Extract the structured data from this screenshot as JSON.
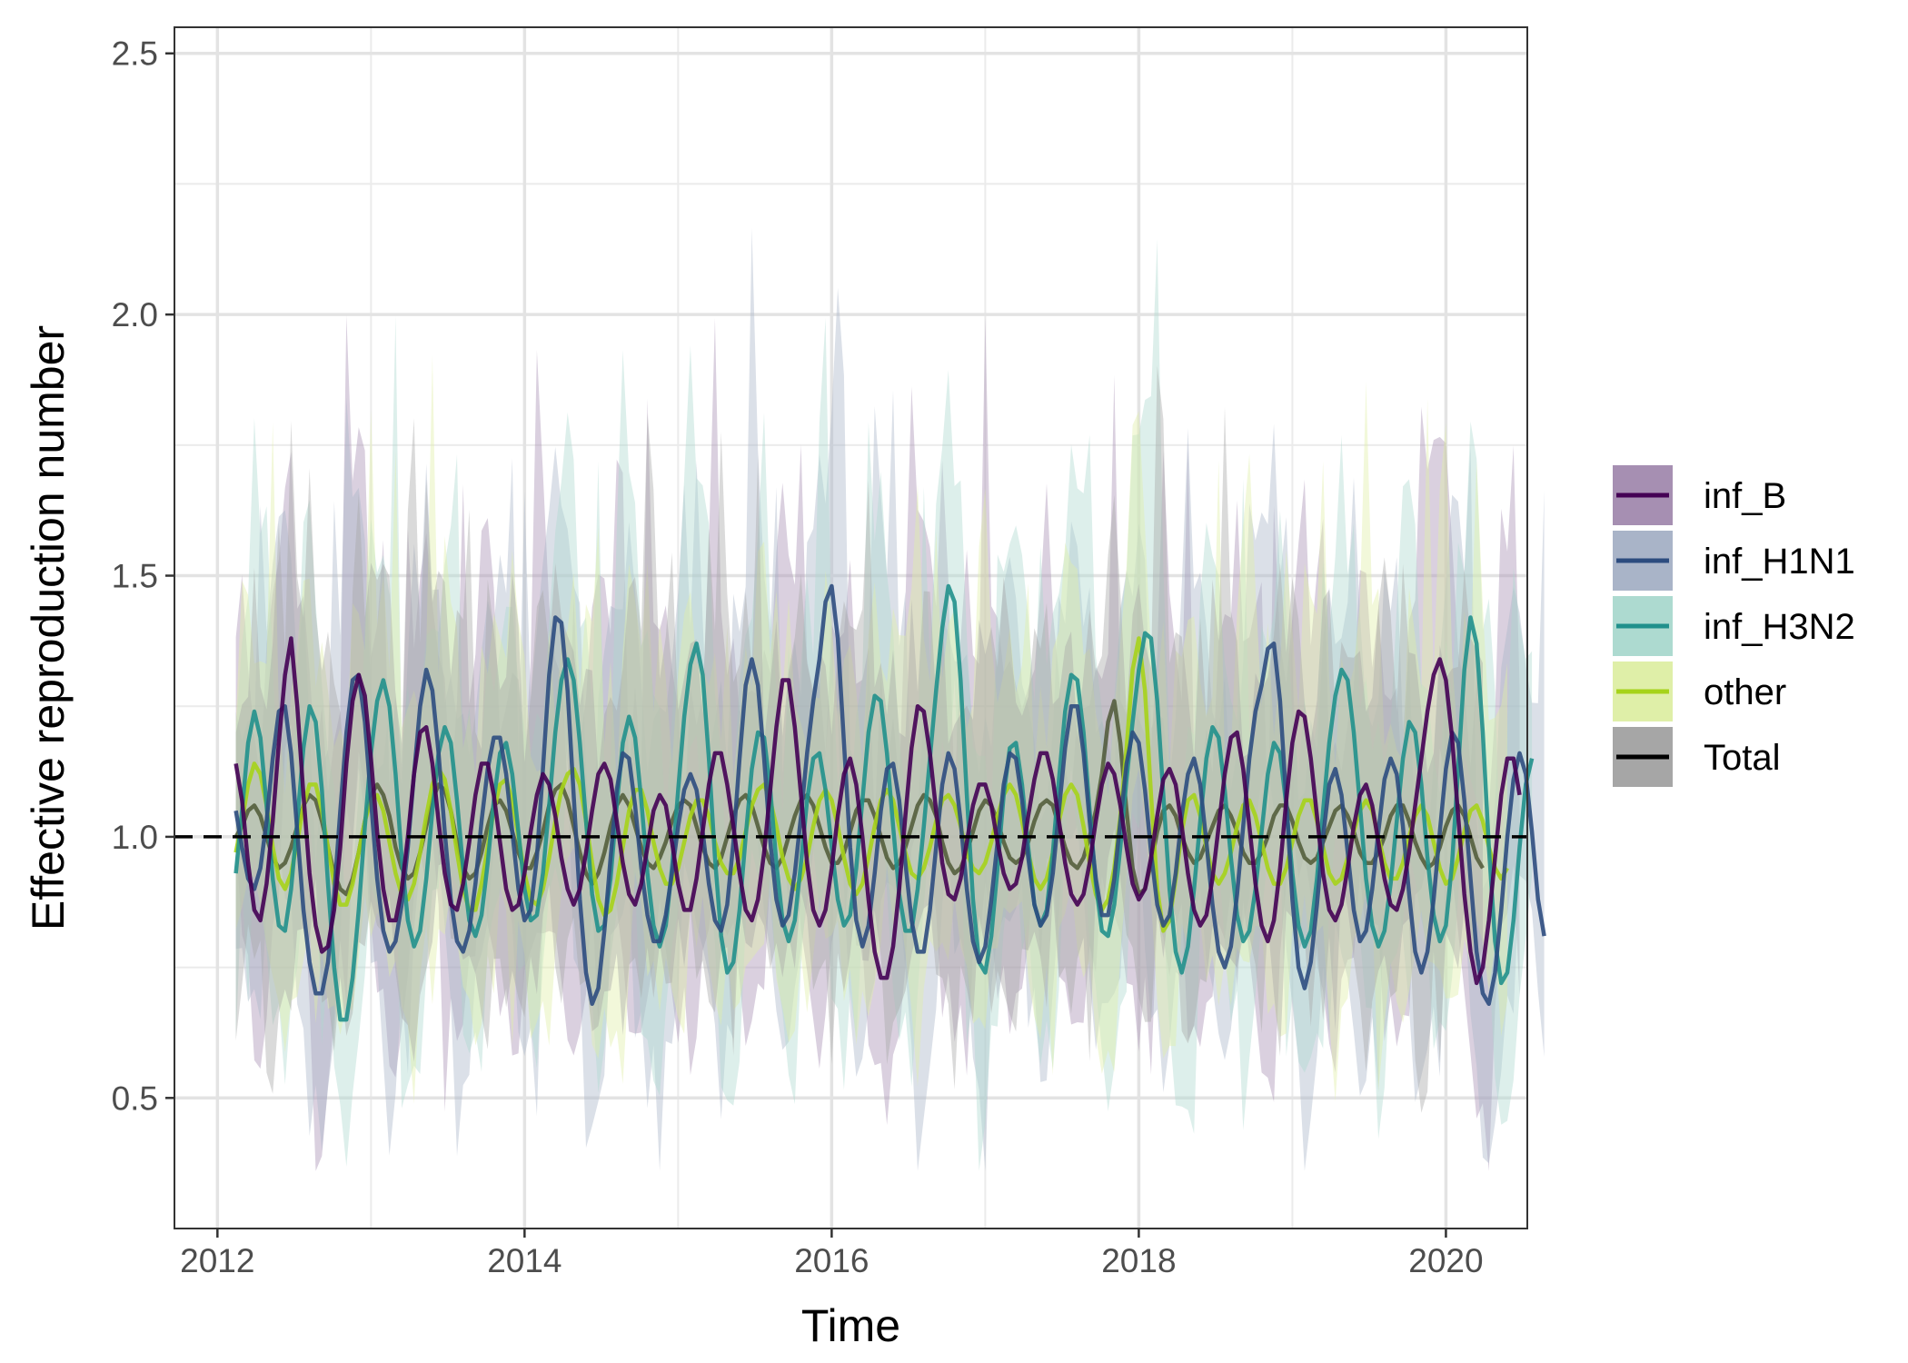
{
  "chart_data": {
    "type": "line",
    "title": "",
    "xlabel": "Time",
    "ylabel": "Effective reproduction number",
    "xlim": [
      2011.72,
      2020.53
    ],
    "ylim": [
      0.25,
      2.55
    ],
    "x_ticks": [
      2012,
      2014,
      2016,
      2018,
      2020
    ],
    "x_tick_labels": [
      "2012",
      "2014",
      "2016",
      "2018",
      "2020"
    ],
    "y_ticks": [
      0.5,
      1.0,
      1.5,
      2.0,
      2.5
    ],
    "y_tick_labels": [
      "0.5",
      "1.0",
      "1.5",
      "2.0",
      "2.5"
    ],
    "grid": true,
    "legend_position": "right",
    "reference_line": {
      "y": 1.0,
      "style": "dashed",
      "color": "#000000"
    },
    "x_start": 2012.12,
    "x_step": 0.04,
    "series": [
      {
        "name": "inf_B",
        "color": "#440154",
        "fill": "#A68FB2",
        "values": [
          1.14,
          1.07,
          0.95,
          0.86,
          0.84,
          0.91,
          1.03,
          1.18,
          1.31,
          1.38,
          1.25,
          1.08,
          0.93,
          0.83,
          0.78,
          0.79,
          0.86,
          0.98,
          1.14,
          1.26,
          1.31,
          1.27,
          1.15,
          1.01,
          0.9,
          0.84,
          0.84,
          0.9,
          1.0,
          1.12,
          1.2,
          1.21,
          1.14,
          1.03,
          0.93,
          0.87,
          0.86,
          0.91,
          0.99,
          1.08,
          1.14,
          1.14,
          1.08,
          0.99,
          0.9,
          0.86,
          0.87,
          0.93,
          1.01,
          1.08,
          1.12,
          1.1,
          1.04,
          0.96,
          0.9,
          0.87,
          0.9,
          0.97,
          1.05,
          1.12,
          1.14,
          1.11,
          1.03,
          0.95,
          0.89,
          0.87,
          0.91,
          0.98,
          1.05,
          1.08,
          1.06,
          0.99,
          0.91,
          0.86,
          0.86,
          0.92,
          1.01,
          1.1,
          1.16,
          1.16,
          1.1,
          1.02,
          0.93,
          0.86,
          0.84,
          0.88,
          0.97,
          1.09,
          1.21,
          1.3,
          1.3,
          1.21,
          1.08,
          0.95,
          0.86,
          0.83,
          0.86,
          0.94,
          1.04,
          1.12,
          1.15,
          1.1,
          1.0,
          0.88,
          0.78,
          0.73,
          0.73,
          0.79,
          0.9,
          1.04,
          1.17,
          1.25,
          1.24,
          1.16,
          1.05,
          0.95,
          0.89,
          0.88,
          0.92,
          0.99,
          1.06,
          1.1,
          1.1,
          1.06,
          0.99,
          0.93,
          0.9,
          0.91,
          0.96,
          1.04,
          1.11,
          1.16,
          1.16,
          1.11,
          1.03,
          0.95,
          0.89,
          0.87,
          0.89,
          0.95,
          1.03,
          1.1,
          1.14,
          1.12,
          1.06,
          0.98,
          0.91,
          0.88,
          0.9,
          0.96,
          1.04,
          1.11,
          1.13,
          1.1,
          1.02,
          0.93,
          0.86,
          0.83,
          0.85,
          0.92,
          1.02,
          1.12,
          1.19,
          1.2,
          1.13,
          1.02,
          0.91,
          0.83,
          0.8,
          0.84,
          0.94,
          1.07,
          1.18,
          1.24,
          1.23,
          1.15,
          1.04,
          0.93,
          0.86,
          0.84,
          0.87,
          0.94,
          1.02,
          1.08,
          1.1,
          1.06,
          0.99,
          0.92,
          0.87,
          0.86,
          0.9,
          0.97,
          1.06,
          1.15,
          1.24,
          1.31,
          1.34,
          1.3,
          1.19,
          1.04,
          0.89,
          0.78,
          0.72,
          0.75,
          0.84,
          0.96,
          1.08,
          1.15,
          1.15,
          1.08
        ]
      },
      {
        "name": "inf_H1N1",
        "color": "#2D4C7F",
        "fill": "#A9B4C8",
        "values": [
          1.05,
          0.98,
          0.92,
          0.9,
          0.94,
          1.03,
          1.15,
          1.24,
          1.25,
          1.16,
          1.01,
          0.86,
          0.76,
          0.7,
          0.7,
          0.76,
          0.89,
          1.05,
          1.2,
          1.3,
          1.31,
          1.22,
          1.07,
          0.92,
          0.82,
          0.78,
          0.8,
          0.87,
          0.98,
          1.12,
          1.25,
          1.32,
          1.28,
          1.16,
          1.01,
          0.88,
          0.8,
          0.78,
          0.82,
          0.91,
          1.03,
          1.13,
          1.19,
          1.19,
          1.12,
          1.01,
          0.9,
          0.84,
          0.86,
          0.96,
          1.13,
          1.31,
          1.42,
          1.41,
          1.28,
          1.08,
          0.88,
          0.74,
          0.68,
          0.71,
          0.82,
          0.96,
          1.09,
          1.16,
          1.15,
          1.06,
          0.94,
          0.85,
          0.8,
          0.8,
          0.85,
          0.93,
          1.02,
          1.09,
          1.12,
          1.09,
          1.01,
          0.91,
          0.84,
          0.82,
          0.87,
          0.99,
          1.15,
          1.29,
          1.34,
          1.29,
          1.15,
          0.99,
          0.88,
          0.83,
          0.85,
          0.93,
          1.04,
          1.16,
          1.26,
          1.34,
          1.45,
          1.48,
          1.38,
          1.18,
          0.98,
          0.84,
          0.79,
          0.83,
          0.93,
          1.05,
          1.13,
          1.14,
          1.07,
          0.95,
          0.84,
          0.78,
          0.78,
          0.86,
          0.98,
          1.1,
          1.16,
          1.13,
          1.03,
          0.9,
          0.8,
          0.76,
          0.79,
          0.88,
          0.99,
          1.1,
          1.16,
          1.15,
          1.07,
          0.96,
          0.87,
          0.83,
          0.85,
          0.93,
          1.05,
          1.17,
          1.25,
          1.25,
          1.16,
          1.03,
          0.92,
          0.85,
          0.85,
          0.92,
          1.03,
          1.14,
          1.2,
          1.18,
          1.09,
          0.97,
          0.87,
          0.83,
          0.85,
          0.93,
          1.04,
          1.12,
          1.15,
          1.1,
          0.99,
          0.87,
          0.78,
          0.75,
          0.79,
          0.89,
          1.02,
          1.15,
          1.24,
          1.29,
          1.36,
          1.37,
          1.26,
          1.07,
          0.88,
          0.75,
          0.71,
          0.76,
          0.87,
          1.0,
          1.1,
          1.13,
          1.08,
          0.97,
          0.86,
          0.8,
          0.82,
          0.9,
          1.01,
          1.11,
          1.15,
          1.12,
          1.02,
          0.89,
          0.78,
          0.74,
          0.78,
          0.88,
          1.01,
          1.13,
          1.2,
          1.18,
          1.07,
          0.92,
          0.78,
          0.7,
          0.68,
          0.74,
          0.86,
          1.0,
          1.11,
          1.16,
          1.12,
          1.01,
          0.88,
          0.81
        ]
      },
      {
        "name": "inf_H3N2",
        "color": "#21908C",
        "fill": "#ADDAD0",
        "values": [
          0.93,
          1.05,
          1.18,
          1.24,
          1.19,
          1.06,
          0.92,
          0.83,
          0.82,
          0.9,
          1.03,
          1.17,
          1.25,
          1.22,
          1.09,
          0.91,
          0.75,
          0.65,
          0.65,
          0.73,
          0.86,
          1.02,
          1.16,
          1.26,
          1.3,
          1.25,
          1.12,
          0.96,
          0.84,
          0.79,
          0.82,
          0.92,
          1.05,
          1.16,
          1.21,
          1.18,
          1.07,
          0.94,
          0.84,
          0.81,
          0.85,
          0.95,
          1.07,
          1.16,
          1.18,
          1.12,
          1.01,
          0.9,
          0.84,
          0.85,
          0.93,
          1.06,
          1.2,
          1.3,
          1.34,
          1.3,
          1.18,
          1.03,
          0.89,
          0.82,
          0.83,
          0.92,
          1.06,
          1.18,
          1.23,
          1.19,
          1.07,
          0.93,
          0.83,
          0.79,
          0.83,
          0.94,
          1.09,
          1.23,
          1.33,
          1.37,
          1.31,
          1.15,
          0.96,
          0.81,
          0.74,
          0.76,
          0.86,
          1.0,
          1.13,
          1.2,
          1.19,
          1.09,
          0.95,
          0.84,
          0.8,
          0.84,
          0.95,
          1.07,
          1.15,
          1.16,
          1.09,
          0.98,
          0.88,
          0.83,
          0.85,
          0.94,
          1.07,
          1.2,
          1.27,
          1.26,
          1.16,
          1.02,
          0.89,
          0.82,
          0.82,
          0.9,
          1.02,
          1.15,
          1.28,
          1.4,
          1.48,
          1.45,
          1.3,
          1.08,
          0.88,
          0.76,
          0.74,
          0.81,
          0.94,
          1.08,
          1.17,
          1.18,
          1.1,
          0.98,
          0.87,
          0.83,
          0.86,
          0.97,
          1.11,
          1.24,
          1.31,
          1.3,
          1.2,
          1.05,
          0.91,
          0.82,
          0.81,
          0.87,
          0.98,
          1.11,
          1.22,
          1.32,
          1.39,
          1.38,
          1.26,
          1.08,
          0.9,
          0.78,
          0.74,
          0.79,
          0.9,
          1.03,
          1.15,
          1.21,
          1.19,
          1.09,
          0.96,
          0.85,
          0.8,
          0.82,
          0.9,
          1.01,
          1.12,
          1.18,
          1.16,
          1.06,
          0.93,
          0.83,
          0.79,
          0.82,
          0.92,
          1.05,
          1.18,
          1.27,
          1.32,
          1.3,
          1.2,
          1.06,
          0.92,
          0.83,
          0.79,
          0.82,
          0.91,
          1.03,
          1.15,
          1.22,
          1.2,
          1.1,
          0.96,
          0.85,
          0.8,
          0.83,
          0.95,
          1.13,
          1.32,
          1.42,
          1.37,
          1.2,
          0.98,
          0.8,
          0.72,
          0.74,
          0.84,
          0.98,
          1.1,
          1.15
        ]
      },
      {
        "name": "other",
        "color": "#A6D31A",
        "fill": "#DFEFA8",
        "values": [
          0.97,
          1.03,
          1.1,
          1.14,
          1.12,
          1.06,
          0.98,
          0.92,
          0.9,
          0.93,
          0.99,
          1.06,
          1.1,
          1.1,
          1.05,
          0.98,
          0.91,
          0.87,
          0.87,
          0.91,
          0.97,
          1.03,
          1.07,
          1.08,
          1.05,
          0.99,
          0.93,
          0.89,
          0.88,
          0.91,
          0.97,
          1.04,
          1.1,
          1.13,
          1.11,
          1.05,
          0.97,
          0.9,
          0.86,
          0.86,
          0.91,
          0.98,
          1.05,
          1.1,
          1.11,
          1.07,
          1.0,
          0.93,
          0.88,
          0.87,
          0.9,
          0.96,
          1.03,
          1.09,
          1.12,
          1.13,
          1.1,
          1.03,
          0.95,
          0.88,
          0.85,
          0.86,
          0.91,
          0.98,
          1.05,
          1.09,
          1.09,
          1.05,
          0.99,
          0.94,
          0.91,
          0.91,
          0.94,
          0.99,
          1.04,
          1.07,
          1.07,
          1.04,
          0.99,
          0.95,
          0.93,
          0.93,
          0.96,
          1.01,
          1.06,
          1.09,
          1.1,
          1.07,
          1.02,
          0.96,
          0.92,
          0.9,
          0.92,
          0.96,
          1.02,
          1.07,
          1.09,
          1.07,
          1.02,
          0.96,
          0.91,
          0.89,
          0.91,
          0.96,
          1.02,
          1.07,
          1.09,
          1.07,
          1.02,
          0.97,
          0.93,
          0.92,
          0.94,
          0.98,
          1.03,
          1.07,
          1.08,
          1.06,
          1.02,
          0.97,
          0.94,
          0.93,
          0.95,
          0.99,
          1.04,
          1.08,
          1.1,
          1.08,
          1.03,
          0.97,
          0.92,
          0.9,
          0.92,
          0.97,
          1.03,
          1.08,
          1.1,
          1.08,
          1.02,
          0.95,
          0.89,
          0.86,
          0.88,
          0.94,
          1.04,
          1.17,
          1.32,
          1.38,
          1.28,
          1.08,
          0.9,
          0.82,
          0.84,
          0.92,
          1.01,
          1.07,
          1.08,
          1.04,
          0.98,
          0.93,
          0.91,
          0.93,
          0.97,
          1.02,
          1.06,
          1.07,
          1.04,
          0.99,
          0.94,
          0.91,
          0.91,
          0.94,
          0.99,
          1.04,
          1.07,
          1.07,
          1.03,
          0.98,
          0.93,
          0.91,
          0.92,
          0.96,
          1.01,
          1.05,
          1.07,
          1.05,
          1.0,
          0.95,
          0.92,
          0.92,
          0.95,
          1.0,
          1.04,
          1.06,
          1.04,
          0.99,
          0.94,
          0.91,
          0.92,
          0.96,
          1.01,
          1.05,
          1.06,
          1.03,
          0.98,
          0.94,
          0.92,
          0.94
        ]
      },
      {
        "name": "Total",
        "color": "#000000",
        "fill": "#A6A6A6",
        "values": [
          1.0,
          1.02,
          1.05,
          1.06,
          1.04,
          1.0,
          0.96,
          0.94,
          0.95,
          0.98,
          1.02,
          1.06,
          1.08,
          1.07,
          1.03,
          0.98,
          0.93,
          0.9,
          0.89,
          0.92,
          0.97,
          1.03,
          1.08,
          1.1,
          1.08,
          1.04,
          0.98,
          0.94,
          0.92,
          0.93,
          0.97,
          1.02,
          1.07,
          1.1,
          1.09,
          1.05,
          0.99,
          0.94,
          0.92,
          0.93,
          0.97,
          1.02,
          1.06,
          1.07,
          1.05,
          1.01,
          0.97,
          0.94,
          0.94,
          0.97,
          1.01,
          1.06,
          1.09,
          1.1,
          1.07,
          1.02,
          0.97,
          0.93,
          0.91,
          0.93,
          0.97,
          1.02,
          1.06,
          1.08,
          1.06,
          1.02,
          0.98,
          0.95,
          0.94,
          0.96,
          0.99,
          1.03,
          1.06,
          1.07,
          1.06,
          1.02,
          0.98,
          0.95,
          0.94,
          0.96,
          1.0,
          1.04,
          1.07,
          1.08,
          1.06,
          1.02,
          0.98,
          0.95,
          0.94,
          0.96,
          1.0,
          1.04,
          1.07,
          1.08,
          1.06,
          1.02,
          0.98,
          0.95,
          0.95,
          0.97,
          1.01,
          1.05,
          1.07,
          1.07,
          1.04,
          1.0,
          0.96,
          0.94,
          0.95,
          0.98,
          1.02,
          1.06,
          1.08,
          1.07,
          1.04,
          0.99,
          0.95,
          0.93,
          0.94,
          0.97,
          1.01,
          1.05,
          1.07,
          1.06,
          1.03,
          0.99,
          0.96,
          0.95,
          0.96,
          0.99,
          1.03,
          1.06,
          1.07,
          1.06,
          1.02,
          0.98,
          0.95,
          0.94,
          0.96,
          1.0,
          1.05,
          1.12,
          1.22,
          1.26,
          1.18,
          1.05,
          0.94,
          0.89,
          0.9,
          0.95,
          1.01,
          1.05,
          1.06,
          1.04,
          1.0,
          0.97,
          0.95,
          0.96,
          0.99,
          1.02,
          1.05,
          1.06,
          1.04,
          1.01,
          0.97,
          0.95,
          0.95,
          0.97,
          1.0,
          1.04,
          1.06,
          1.06,
          1.03,
          0.99,
          0.96,
          0.95,
          0.96,
          0.99,
          1.02,
          1.05,
          1.06,
          1.04,
          1.01,
          0.97,
          0.95,
          0.95,
          0.97,
          1.0,
          1.04,
          1.06,
          1.06,
          1.03,
          0.99,
          0.96,
          0.94,
          0.95,
          0.98,
          1.02,
          1.05,
          1.06,
          1.04,
          1.0,
          0.96,
          0.94
        ]
      }
    ]
  }
}
